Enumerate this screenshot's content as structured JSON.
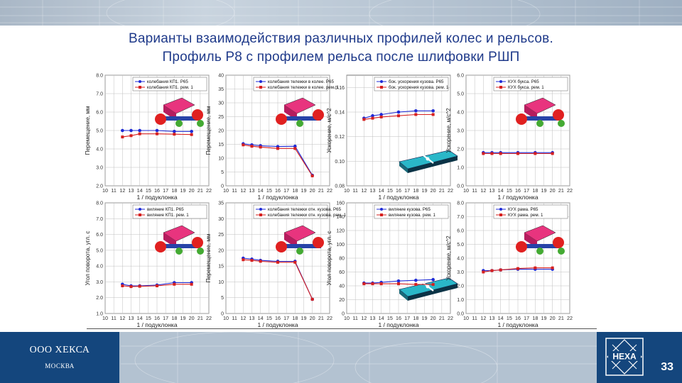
{
  "header": {
    "title_line1": "Варианты взаимодействия различных профилей колес и рельсов.",
    "title_line2": "Профиль Р8 с профилем рельса после шлифовки РШП"
  },
  "footer": {
    "company": "ООО ХЕКСА",
    "city": "МОСКВА",
    "logo_text": "HEXA",
    "page_number": "33"
  },
  "colors": {
    "series_p65": "#1f2bd6",
    "series_rem1": "#d6201f",
    "brand_blue": "#14467d"
  },
  "chart_data": [
    {
      "type": "line",
      "xlabel": "1 / подуклонка",
      "ylabel": "Перемещение, мм",
      "xlim": [
        10,
        22
      ],
      "xticks": [
        10,
        11,
        12,
        13,
        14,
        15,
        16,
        17,
        18,
        19,
        20,
        21,
        22
      ],
      "ylim": [
        2.0,
        8.0
      ],
      "yticks": [
        2.0,
        3.0,
        4.0,
        5.0,
        6.0,
        7.0,
        8.0
      ],
      "ydec": 1,
      "grid": true,
      "legend_position": "top-right",
      "inset_picture": "bogie-wheelset",
      "series": [
        {
          "name": "колебания КП1. Р65",
          "x": [
            12,
            13,
            14,
            16,
            18,
            20
          ],
          "y": [
            5.0,
            5.0,
            5.0,
            5.0,
            4.95,
            4.95
          ]
        },
        {
          "name": "колебания КП1. рем. 1",
          "x": [
            12,
            13,
            14,
            16,
            18,
            20
          ],
          "y": [
            4.65,
            4.72,
            4.82,
            4.82,
            4.8,
            4.78
          ]
        }
      ]
    },
    {
      "type": "line",
      "xlabel": "1 / подуклонка",
      "ylabel": "Перемещение, мм",
      "xlim": [
        10,
        22
      ],
      "xticks": [
        10,
        11,
        12,
        13,
        14,
        15,
        16,
        17,
        18,
        19,
        20,
        21,
        22
      ],
      "ylim": [
        0,
        40
      ],
      "yticks": [
        0,
        5,
        10,
        15,
        20,
        25,
        30,
        35,
        40
      ],
      "ydec": 0,
      "grid": true,
      "legend_position": "top-right",
      "inset_picture": "bogie",
      "series": [
        {
          "name": "колебания тележки в колее. Р65",
          "x": [
            12,
            13,
            14,
            16,
            18,
            20
          ],
          "y": [
            15.2,
            14.8,
            14.5,
            14.2,
            14.3,
            3.8
          ]
        },
        {
          "name": "колебания тележки в колее. рем. 1",
          "x": [
            12,
            13,
            14,
            16,
            18,
            20
          ],
          "y": [
            14.8,
            14.3,
            14.0,
            13.5,
            13.5,
            3.6
          ]
        }
      ]
    },
    {
      "type": "line",
      "xlabel": "1 / подуклонка",
      "ylabel": "Ускорение, м/с^2",
      "xlim": [
        10,
        22
      ],
      "xticks": [
        10,
        11,
        12,
        13,
        14,
        15,
        16,
        17,
        18,
        19,
        20,
        21,
        22
      ],
      "ylim": [
        0.08,
        0.17
      ],
      "yticks": [
        0.08,
        0.1,
        0.12,
        0.14,
        0.16
      ],
      "ydec": 2,
      "grid": true,
      "legend_position": "top-right",
      "inset_picture": "car-body",
      "series": [
        {
          "name": "бок. ускорения кузова. Р65",
          "x": [
            12,
            13,
            14,
            16,
            18,
            20
          ],
          "y": [
            0.135,
            0.137,
            0.138,
            0.14,
            0.141,
            0.141
          ]
        },
        {
          "name": "бок. ускорения кузова. рем. 1",
          "x": [
            12,
            13,
            14,
            16,
            18,
            20
          ],
          "y": [
            0.134,
            0.135,
            0.136,
            0.137,
            0.138,
            0.138
          ]
        }
      ]
    },
    {
      "type": "line",
      "xlabel": "1 / подуклонка",
      "ylabel": "Ускорение, м/с^2",
      "xlim": [
        10,
        22
      ],
      "xticks": [
        10,
        11,
        12,
        13,
        14,
        15,
        16,
        17,
        18,
        19,
        20,
        21,
        22
      ],
      "ylim": [
        0.0,
        6.0
      ],
      "yticks": [
        0.0,
        1.0,
        2.0,
        3.0,
        4.0,
        5.0,
        6.0
      ],
      "ydec": 1,
      "grid": true,
      "legend_position": "top-right",
      "inset_picture": "axle-box",
      "series": [
        {
          "name": "КУХ букса. Р65",
          "x": [
            12,
            13,
            14,
            16,
            18,
            20
          ],
          "y": [
            1.8,
            1.8,
            1.8,
            1.8,
            1.8,
            1.8
          ]
        },
        {
          "name": "КУХ букса. рем. 1",
          "x": [
            12,
            13,
            14,
            16,
            18,
            20
          ],
          "y": [
            1.75,
            1.75,
            1.75,
            1.75,
            1.75,
            1.75
          ]
        }
      ]
    },
    {
      "type": "line",
      "xlabel": "1 / подуклонка",
      "ylabel": "Угол поворота, угл. с",
      "xlim": [
        10,
        22
      ],
      "xticks": [
        10,
        11,
        12,
        13,
        14,
        15,
        16,
        17,
        18,
        19,
        20,
        21,
        22
      ],
      "ylim": [
        1.0,
        8.0
      ],
      "yticks": [
        1.0,
        2.0,
        3.0,
        4.0,
        5.0,
        6.0,
        7.0,
        8.0
      ],
      "ydec": 1,
      "grid": true,
      "legend_position": "top-right",
      "inset_picture": "bogie-wheelset",
      "series": [
        {
          "name": "виляние КП1. Р65",
          "x": [
            12,
            13,
            14,
            16,
            18,
            20
          ],
          "y": [
            2.85,
            2.75,
            2.75,
            2.8,
            2.95,
            2.95
          ]
        },
        {
          "name": "виляние КП1. рем. 1",
          "x": [
            12,
            13,
            14,
            16,
            18,
            20
          ],
          "y": [
            2.75,
            2.7,
            2.72,
            2.75,
            2.85,
            2.85
          ]
        }
      ]
    },
    {
      "type": "line",
      "xlabel": "1 / подуклонка",
      "ylabel": "Перемещение, мм",
      "xlim": [
        10,
        22
      ],
      "xticks": [
        10,
        11,
        12,
        13,
        14,
        15,
        16,
        17,
        18,
        19,
        20,
        21,
        22
      ],
      "ylim": [
        0,
        35
      ],
      "yticks": [
        0,
        5,
        10,
        15,
        20,
        25,
        30,
        35
      ],
      "ydec": 0,
      "grid": true,
      "legend_position": "top-right",
      "inset_picture": "bogie",
      "series": [
        {
          "name": "колебания тележки отн. кузова. Р65",
          "x": [
            12,
            13,
            14,
            16,
            18,
            20
          ],
          "y": [
            17.5,
            17.2,
            16.8,
            16.5,
            16.5,
            4.5
          ]
        },
        {
          "name": "колебания тележки отн. кузова. рем. 1",
          "x": [
            12,
            13,
            14,
            16,
            18,
            20
          ],
          "y": [
            17.0,
            16.8,
            16.5,
            16.2,
            16.2,
            4.5
          ]
        }
      ]
    },
    {
      "type": "line",
      "xlabel": "1 / подуклонка",
      "ylabel": "Угол поворота, угл. с",
      "xlim": [
        10,
        22
      ],
      "xticks": [
        10,
        11,
        12,
        13,
        14,
        15,
        16,
        17,
        18,
        19,
        20,
        21,
        22
      ],
      "ylim": [
        0,
        160
      ],
      "yticks": [
        0,
        20,
        40,
        60,
        80,
        100,
        120,
        140,
        160
      ],
      "ydec": 0,
      "grid": true,
      "legend_position": "top-right",
      "inset_picture": "car-body",
      "series": [
        {
          "name": "виляние кузова. Р65",
          "x": [
            12,
            13,
            14,
            16,
            18,
            20
          ],
          "y": [
            44,
            44,
            45,
            47,
            48,
            49
          ]
        },
        {
          "name": "виляние кузова. рем. 1",
          "x": [
            12,
            13,
            14,
            16,
            18,
            20
          ],
          "y": [
            43,
            43,
            43,
            43,
            42,
            42
          ]
        }
      ]
    },
    {
      "type": "line",
      "xlabel": "1 / подуклонка",
      "ylabel": "Ускорение, м/с^2",
      "xlim": [
        10,
        22
      ],
      "xticks": [
        10,
        11,
        12,
        13,
        14,
        15,
        16,
        17,
        18,
        19,
        20,
        21,
        22
      ],
      "ylim": [
        0.0,
        8.0
      ],
      "yticks": [
        0.0,
        1.0,
        2.0,
        3.0,
        4.0,
        5.0,
        6.0,
        7.0,
        8.0
      ],
      "ydec": 1,
      "grid": true,
      "legend_position": "top-right",
      "inset_picture": "axle-box",
      "series": [
        {
          "name": "КУХ рама. Р65",
          "x": [
            12,
            13,
            14,
            16,
            18,
            20
          ],
          "y": [
            3.1,
            3.1,
            3.15,
            3.2,
            3.2,
            3.2
          ]
        },
        {
          "name": "КУХ рама. рем. 1",
          "x": [
            12,
            13,
            14,
            16,
            18,
            20
          ],
          "y": [
            3.0,
            3.1,
            3.15,
            3.25,
            3.3,
            3.3
          ]
        }
      ]
    }
  ]
}
